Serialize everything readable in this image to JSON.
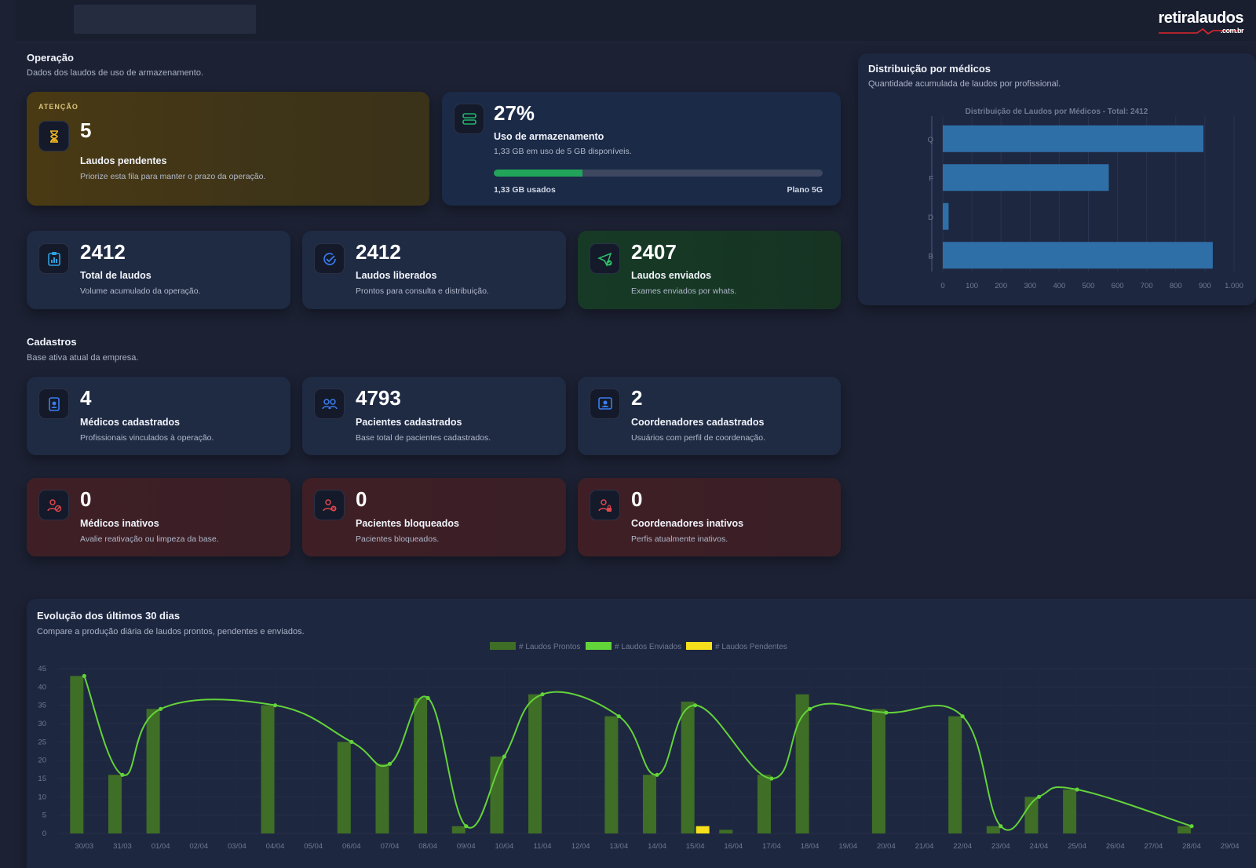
{
  "header": {
    "logo_text": "retiralaudos",
    "logo_sub": ".com.br"
  },
  "operacao": {
    "title": "Operação",
    "subtitle": "Dados dos laudos de uso de armazenamento."
  },
  "pendentes": {
    "badge": "ATENÇÃO",
    "value": "5",
    "label": "Laudos pendentes",
    "desc": "Priorize esta fila para manter o prazo da operação.",
    "icon": "hourglass-icon"
  },
  "storage": {
    "value": "27%",
    "label": "Uso de armazenamento",
    "desc": "1,33 GB em uso de 5 GB disponíveis.",
    "used_label": "1,33 GB usados",
    "plan_label": "Plano 5G",
    "percent": 27,
    "icon": "server-icon"
  },
  "stats": [
    {
      "value": "2412",
      "label": "Total de laudos",
      "desc": "Volume acumulado da operação.",
      "icon": "clipboard-chart-icon"
    },
    {
      "value": "2412",
      "label": "Laudos liberados",
      "desc": "Prontos para consulta e distribuição.",
      "icon": "check-circle-icon"
    },
    {
      "value": "2407",
      "label": "Laudos enviados",
      "desc": "Exames enviados por whats.",
      "icon": "send-check-icon"
    }
  ],
  "cadastros": {
    "title": "Cadastros",
    "subtitle": "Base ativa atual da empresa."
  },
  "registered": [
    {
      "value": "4",
      "label": "Médicos cadastrados",
      "desc": "Profissionais vinculados à operação.",
      "icon": "doctor-badge-icon"
    },
    {
      "value": "4793",
      "label": "Pacientes cadastrados",
      "desc": "Base total de pacientes cadastrados.",
      "icon": "users-icon"
    },
    {
      "value": "2",
      "label": "Coordenadores cadastrados",
      "desc": "Usuários com perfil de coordenação.",
      "icon": "user-screen-icon"
    }
  ],
  "inactive": [
    {
      "value": "0",
      "label": "Médicos inativos",
      "desc": "Avalie reativação ou limpeza da base.",
      "icon": "user-block-icon"
    },
    {
      "value": "0",
      "label": "Pacientes bloqueados",
      "desc": "Pacientes bloqueados.",
      "icon": "user-x-icon"
    },
    {
      "value": "0",
      "label": "Coordenadores inativos",
      "desc": "Perfis atualmente inativos.",
      "icon": "user-lock-icon"
    }
  ],
  "distribution": {
    "title": "Distribuição por médicos",
    "subtitle": "Quantidade acumulada de laudos por profissional."
  },
  "evolution": {
    "title": "Evolução dos últimos 30 dias",
    "subtitle": "Compare a produção diária de laudos prontos, pendentes e enviados."
  },
  "colors": {
    "accent_green": "#22a35a",
    "bar_blue": "#2f6fa8",
    "bar_green": "#3f6e26",
    "line_green": "#63d33a",
    "pending_yellow": "#f5e01b"
  },
  "chart_data": [
    {
      "type": "bar",
      "orientation": "horizontal",
      "title": "Distribuição de Laudos por Médicos - Total: 2412",
      "categories": [
        "Q",
        "F",
        "D",
        "B"
      ],
      "values": [
        895,
        570,
        20,
        927
      ],
      "xlim": [
        0,
        1000
      ],
      "xticks": [
        "0",
        "100",
        "200",
        "300",
        "400",
        "500",
        "600",
        "700",
        "800",
        "900",
        "1.000"
      ],
      "grid": true
    },
    {
      "type": "bar",
      "title": "",
      "x": [
        "30/03",
        "31/03",
        "01/04",
        "02/04",
        "03/04",
        "04/04",
        "05/04",
        "06/04",
        "07/04",
        "08/04",
        "09/04",
        "10/04",
        "11/04",
        "12/04",
        "13/04",
        "14/04",
        "15/04",
        "16/04",
        "17/04",
        "18/04",
        "19/04",
        "20/04",
        "21/04",
        "22/04",
        "23/04",
        "24/04",
        "25/04",
        "26/04",
        "27/04",
        "28/04",
        "29/04"
      ],
      "ylim": [
        0,
        45
      ],
      "yticks": [
        "0",
        "5",
        "10",
        "15",
        "20",
        "25",
        "30",
        "35",
        "40",
        "45"
      ],
      "legend_position": "top",
      "series": [
        {
          "name": "# Laudos Prontos",
          "kind": "bar",
          "values": [
            43,
            16,
            34,
            0,
            0,
            35,
            0,
            25,
            19,
            37,
            2,
            21,
            38,
            0,
            32,
            16,
            36,
            1,
            16,
            38,
            0,
            34,
            0,
            32,
            2,
            10,
            12,
            0,
            0,
            2,
            0
          ]
        },
        {
          "name": "# Laudos Enviados",
          "kind": "line",
          "values": [
            43,
            16,
            34,
            null,
            null,
            35,
            null,
            25,
            19,
            37,
            2,
            21,
            38,
            null,
            32,
            16,
            35,
            null,
            15,
            34,
            null,
            33,
            null,
            32,
            2,
            10,
            12,
            null,
            null,
            2,
            null
          ]
        },
        {
          "name": "# Laudos Pendentes",
          "kind": "bar",
          "values": [
            0,
            0,
            0,
            0,
            0,
            0,
            0,
            0,
            0,
            0,
            0,
            0,
            0,
            0,
            0,
            0,
            2,
            0,
            0,
            0,
            0,
            0,
            0,
            0,
            0,
            0,
            0,
            0,
            0,
            0,
            0
          ]
        }
      ]
    }
  ]
}
